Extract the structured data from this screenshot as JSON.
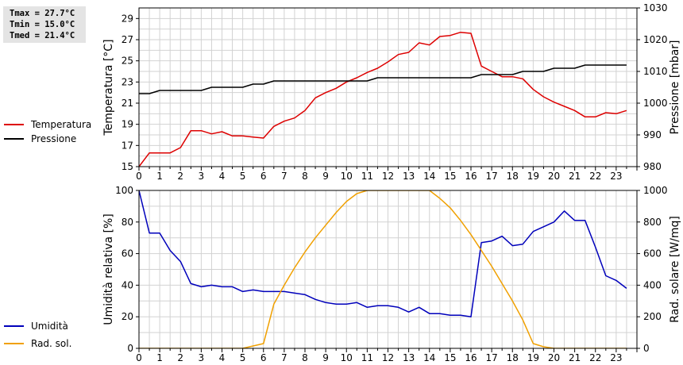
{
  "stats": {
    "tmax": "Tmax = 27.7°C",
    "tmin": "Tmin = 15.0°C",
    "tmed": "Tmed = 21.4°C"
  },
  "colors": {
    "temperature": "#dd0000",
    "pressure": "#000000",
    "humidity": "#0000bb",
    "radiation": "#f0a000",
    "grid": "#d2d2d2"
  },
  "chart_data": [
    {
      "type": "line",
      "xlim": [
        0,
        24
      ],
      "x_ticks": [
        "0",
        "1",
        "2",
        "3",
        "4",
        "5",
        "6",
        "7",
        "8",
        "9",
        "10",
        "11",
        "12",
        "13",
        "14",
        "15",
        "16",
        "17",
        "18",
        "19",
        "20",
        "21",
        "22",
        "23"
      ],
      "ylabel": "Temperatura [°C]",
      "ylim": [
        15,
        30
      ],
      "y_ticks": [
        "15",
        "17",
        "19",
        "21",
        "23",
        "25",
        "27",
        "29"
      ],
      "y2label": "Pressione [mbar]",
      "y2lim": [
        980,
        1030
      ],
      "y2_ticks": [
        "980",
        "990",
        "1000",
        "1010",
        "1020",
        "1030"
      ],
      "grid": true,
      "legend": "left",
      "series": [
        {
          "name": "Temperatura",
          "axis": "left",
          "x": [
            0,
            0.5,
            1,
            1.5,
            2,
            2.5,
            3,
            3.5,
            4,
            4.5,
            5,
            5.5,
            6,
            6.5,
            7,
            7.5,
            8,
            8.5,
            9,
            9.5,
            10,
            10.5,
            11,
            11.5,
            12,
            12.5,
            13,
            13.5,
            14,
            14.5,
            15,
            15.5,
            16,
            16.5,
            17,
            17.5,
            18,
            18.5,
            19,
            19.5,
            20,
            20.5,
            21,
            21.5,
            22,
            22.5,
            23,
            23.5
          ],
          "y": [
            15.0,
            16.3,
            16.3,
            16.3,
            16.8,
            18.4,
            18.4,
            18.1,
            18.3,
            17.9,
            17.9,
            17.8,
            17.7,
            18.8,
            19.3,
            19.6,
            20.3,
            21.5,
            22.0,
            22.4,
            23.0,
            23.4,
            23.9,
            24.3,
            24.9,
            25.6,
            25.8,
            26.7,
            26.5,
            27.3,
            27.4,
            27.7,
            27.6,
            24.5,
            24.0,
            23.5,
            23.5,
            23.3,
            22.3,
            21.6,
            21.1,
            20.7,
            20.3,
            19.7,
            19.7,
            20.1,
            20.0,
            20.3
          ]
        },
        {
          "name": "Pressione",
          "axis": "right",
          "x": [
            0,
            0.5,
            1,
            1.5,
            2,
            2.5,
            3,
            3.5,
            4,
            4.5,
            5,
            5.5,
            6,
            6.5,
            7,
            7.5,
            8,
            8.5,
            9,
            9.5,
            10,
            10.5,
            11,
            11.5,
            12,
            12.5,
            13,
            13.5,
            14,
            14.5,
            15,
            15.5,
            16,
            16.5,
            17,
            17.5,
            18,
            18.5,
            19,
            19.5,
            20,
            20.5,
            21,
            21.5,
            22,
            22.5,
            23,
            23.5
          ],
          "y": [
            1003,
            1003,
            1004,
            1004,
            1004,
            1004,
            1004,
            1005,
            1005,
            1005,
            1005,
            1006,
            1006,
            1007,
            1007,
            1007,
            1007,
            1007,
            1007,
            1007,
            1007,
            1007,
            1007,
            1008,
            1008,
            1008,
            1008,
            1008,
            1008,
            1008,
            1008,
            1008,
            1008,
            1009,
            1009,
            1009,
            1009,
            1010,
            1010,
            1010,
            1011,
            1011,
            1011,
            1012,
            1012,
            1012,
            1012,
            1012
          ]
        }
      ]
    },
    {
      "type": "line",
      "xlim": [
        0,
        24
      ],
      "x_ticks": [
        "0",
        "1",
        "2",
        "3",
        "4",
        "5",
        "6",
        "7",
        "8",
        "9",
        "10",
        "11",
        "12",
        "13",
        "14",
        "15",
        "16",
        "17",
        "18",
        "19",
        "20",
        "21",
        "22",
        "23"
      ],
      "ylabel": "Umidità relativa [%]",
      "ylim": [
        0,
        100
      ],
      "y_ticks": [
        "0",
        "20",
        "40",
        "60",
        "80",
        "100"
      ],
      "y2label": "Rad. solare [W/mq]",
      "y2lim": [
        0,
        1000
      ],
      "y2_ticks": [
        "0",
        "200",
        "400",
        "600",
        "800",
        "1000"
      ],
      "grid": true,
      "legend": "left",
      "series": [
        {
          "name": "Umidità",
          "axis": "left",
          "x": [
            0,
            0.5,
            1,
            1.5,
            2,
            2.5,
            3,
            3.5,
            4,
            4.5,
            5,
            5.5,
            6,
            6.5,
            7,
            7.5,
            8,
            8.5,
            9,
            9.5,
            10,
            10.5,
            11,
            11.5,
            12,
            12.5,
            13,
            13.5,
            14,
            14.5,
            15,
            15.5,
            16,
            16.5,
            17,
            17.5,
            18,
            18.5,
            19,
            19.5,
            20,
            20.5,
            21,
            21.5,
            22,
            22.5,
            23,
            23.5
          ],
          "y": [
            100,
            73,
            73,
            62,
            55,
            41,
            39,
            40,
            39,
            39,
            36,
            37,
            36,
            36,
            36,
            35,
            34,
            31,
            29,
            28,
            28,
            29,
            26,
            27,
            27,
            26,
            23,
            26,
            22,
            22,
            21,
            21,
            20,
            67,
            68,
            71,
            65,
            66,
            74,
            77,
            80,
            87,
            81,
            81,
            64,
            46,
            43,
            38
          ]
        },
        {
          "name": "Rad. sol.",
          "axis": "right",
          "x": [
            0,
            1,
            2,
            3,
            4,
            5,
            5.5,
            6,
            6.5,
            7,
            7.5,
            8,
            8.5,
            9,
            9.5,
            10,
            10.5,
            11,
            11.5,
            12,
            12.5,
            13,
            13.5,
            14,
            14.5,
            15,
            15.5,
            16,
            16.5,
            17,
            17.5,
            18,
            18.5,
            19,
            19.5,
            20,
            21,
            22,
            23,
            23.5
          ],
          "y": [
            0,
            0,
            0,
            0,
            0,
            0,
            15,
            30,
            280,
            400,
            510,
            610,
            700,
            780,
            860,
            930,
            980,
            1000,
            1000,
            1000,
            1000,
            1000,
            1000,
            1000,
            950,
            890,
            810,
            720,
            620,
            520,
            410,
            300,
            180,
            30,
            10,
            0,
            0,
            0,
            0,
            0
          ]
        }
      ]
    }
  ]
}
